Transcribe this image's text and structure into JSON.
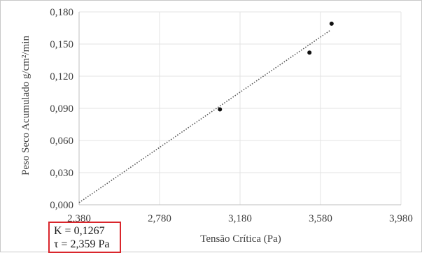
{
  "chart_data": {
    "type": "scatter",
    "xlabel": "Tensão Crítica (Pa)",
    "ylabel": "Peso Seco Acumulado  g/cm²/min",
    "xlim": [
      2380,
      3980
    ],
    "ylim": [
      0,
      0.18
    ],
    "x_ticks": [
      "2,380",
      "2,780",
      "3,180",
      "3,580",
      "3,980"
    ],
    "y_ticks": [
      "0,000",
      "0,030",
      "0,060",
      "0,090",
      "0,120",
      "0,150",
      "0,180"
    ],
    "x_tick_values": [
      2380,
      2780,
      3180,
      3580,
      3980
    ],
    "y_tick_values": [
      0,
      0.03,
      0.06,
      0.09,
      0.12,
      0.15,
      0.18
    ],
    "grid": true,
    "series": [
      {
        "points": [
          {
            "x": 3080,
            "y": 0.089
          },
          {
            "x": 3525,
            "y": 0.142
          },
          {
            "x": 3635,
            "y": 0.169
          }
        ]
      }
    ],
    "trendline": {
      "style": "dotted",
      "from": {
        "x": 2380,
        "y": 0.002
      },
      "to": {
        "x": 3630,
        "y": 0.163
      }
    },
    "colors": {
      "points": "#111111",
      "trendline": "#555555",
      "grid": "#e3e3e3",
      "box": "#d9262c"
    }
  },
  "annotation": {
    "line1": "K = 0,1267",
    "line2": "τ = 2,359 Pa"
  }
}
